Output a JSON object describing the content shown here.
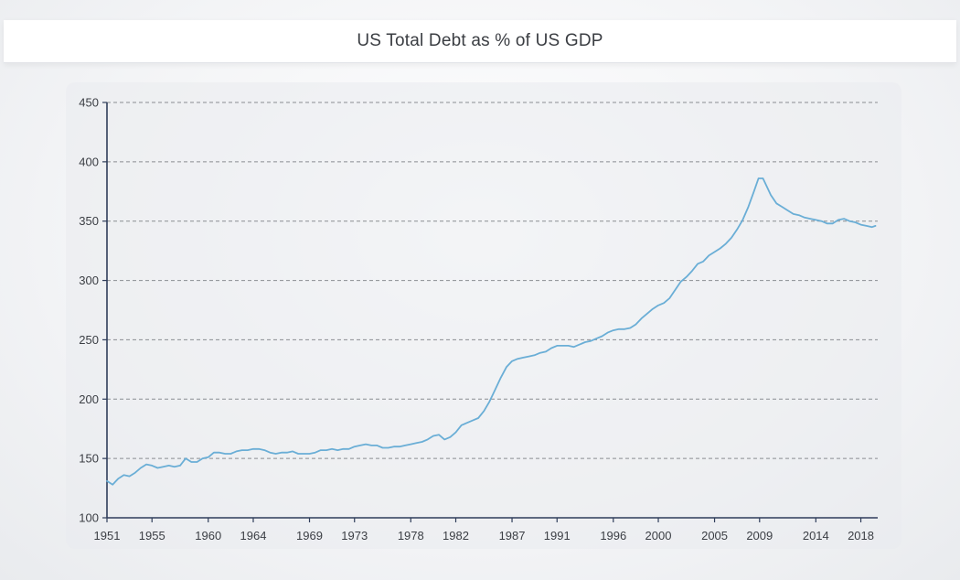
{
  "chart_data": {
    "type": "line",
    "title": "US Total Debt as % of US GDP",
    "xlabel": "",
    "ylabel": "",
    "xlim": [
      1951,
      2019.5
    ],
    "ylim": [
      100,
      450
    ],
    "y_ticks": [
      100,
      150,
      200,
      250,
      300,
      350,
      400,
      450
    ],
    "x_ticks": [
      1951,
      1955,
      1960,
      1964,
      1969,
      1973,
      1978,
      1982,
      1987,
      1991,
      1996,
      2000,
      2005,
      2009,
      2014,
      2018
    ],
    "grid": "horizontal dashed",
    "colors": {
      "line": "#6aaed6",
      "axis": "#2f3d5a",
      "grid": "#8a8d92"
    },
    "series": [
      {
        "values": [
          [
            1951.0,
            131
          ],
          [
            1951.5,
            128
          ],
          [
            1952.0,
            133
          ],
          [
            1952.5,
            136
          ],
          [
            1953.0,
            135
          ],
          [
            1953.5,
            138
          ],
          [
            1954.0,
            142
          ],
          [
            1954.5,
            145
          ],
          [
            1955.0,
            144
          ],
          [
            1955.5,
            142
          ],
          [
            1956.0,
            143
          ],
          [
            1956.5,
            144
          ],
          [
            1957.0,
            143
          ],
          [
            1957.5,
            144
          ],
          [
            1958.0,
            150
          ],
          [
            1958.5,
            147
          ],
          [
            1959.0,
            147
          ],
          [
            1959.5,
            150
          ],
          [
            1960.0,
            151
          ],
          [
            1960.5,
            155
          ],
          [
            1961.0,
            155
          ],
          [
            1961.5,
            154
          ],
          [
            1962.0,
            154
          ],
          [
            1962.5,
            156
          ],
          [
            1963.0,
            157
          ],
          [
            1963.5,
            157
          ],
          [
            1964.0,
            158
          ],
          [
            1964.5,
            158
          ],
          [
            1965.0,
            157
          ],
          [
            1965.5,
            155
          ],
          [
            1966.0,
            154
          ],
          [
            1966.5,
            155
          ],
          [
            1967.0,
            155
          ],
          [
            1967.5,
            156
          ],
          [
            1968.0,
            154
          ],
          [
            1968.5,
            154
          ],
          [
            1969.0,
            154
          ],
          [
            1969.5,
            155
          ],
          [
            1970.0,
            157
          ],
          [
            1970.5,
            157
          ],
          [
            1971.0,
            158
          ],
          [
            1971.5,
            157
          ],
          [
            1972.0,
            158
          ],
          [
            1972.5,
            158
          ],
          [
            1973.0,
            160
          ],
          [
            1973.5,
            161
          ],
          [
            1974.0,
            162
          ],
          [
            1974.5,
            161
          ],
          [
            1975.0,
            161
          ],
          [
            1975.5,
            159
          ],
          [
            1976.0,
            159
          ],
          [
            1976.5,
            160
          ],
          [
            1977.0,
            160
          ],
          [
            1977.5,
            161
          ],
          [
            1978.0,
            162
          ],
          [
            1978.5,
            163
          ],
          [
            1979.0,
            164
          ],
          [
            1979.5,
            166
          ],
          [
            1980.0,
            169
          ],
          [
            1980.5,
            170
          ],
          [
            1981.0,
            166
          ],
          [
            1981.5,
            168
          ],
          [
            1982.0,
            172
          ],
          [
            1982.5,
            178
          ],
          [
            1983.0,
            180
          ],
          [
            1983.5,
            182
          ],
          [
            1984.0,
            184
          ],
          [
            1984.5,
            190
          ],
          [
            1985.0,
            198
          ],
          [
            1985.5,
            208
          ],
          [
            1986.0,
            218
          ],
          [
            1986.5,
            227
          ],
          [
            1987.0,
            232
          ],
          [
            1987.5,
            234
          ],
          [
            1988.0,
            235
          ],
          [
            1988.5,
            236
          ],
          [
            1989.0,
            237
          ],
          [
            1989.5,
            239
          ],
          [
            1990.0,
            240
          ],
          [
            1990.5,
            243
          ],
          [
            1991.0,
            245
          ],
          [
            1991.5,
            245
          ],
          [
            1992.0,
            245
          ],
          [
            1992.5,
            244
          ],
          [
            1993.0,
            246
          ],
          [
            1993.5,
            248
          ],
          [
            1994.0,
            249
          ],
          [
            1994.5,
            251
          ],
          [
            1995.0,
            253
          ],
          [
            1995.5,
            256
          ],
          [
            1996.0,
            258
          ],
          [
            1996.5,
            259
          ],
          [
            1997.0,
            259
          ],
          [
            1997.5,
            260
          ],
          [
            1998.0,
            263
          ],
          [
            1998.5,
            268
          ],
          [
            1999.0,
            272
          ],
          [
            1999.5,
            276
          ],
          [
            2000.0,
            279
          ],
          [
            2000.5,
            281
          ],
          [
            2001.0,
            285
          ],
          [
            2001.5,
            292
          ],
          [
            2002.0,
            299
          ],
          [
            2002.5,
            303
          ],
          [
            2003.0,
            308
          ],
          [
            2003.5,
            314
          ],
          [
            2004.0,
            316
          ],
          [
            2004.5,
            321
          ],
          [
            2005.0,
            324
          ],
          [
            2005.5,
            327
          ],
          [
            2006.0,
            331
          ],
          [
            2006.5,
            336
          ],
          [
            2007.0,
            343
          ],
          [
            2007.5,
            351
          ],
          [
            2008.0,
            362
          ],
          [
            2008.5,
            375
          ],
          [
            2008.9,
            386
          ],
          [
            2009.3,
            386
          ],
          [
            2009.7,
            378
          ],
          [
            2010.0,
            372
          ],
          [
            2010.5,
            365
          ],
          [
            2011.0,
            362
          ],
          [
            2011.5,
            359
          ],
          [
            2012.0,
            356
          ],
          [
            2012.5,
            355
          ],
          [
            2013.0,
            353
          ],
          [
            2013.5,
            352
          ],
          [
            2014.0,
            351
          ],
          [
            2014.5,
            350
          ],
          [
            2015.0,
            348
          ],
          [
            2015.5,
            348
          ],
          [
            2016.0,
            351
          ],
          [
            2016.5,
            352
          ],
          [
            2017.0,
            350
          ],
          [
            2017.5,
            349
          ],
          [
            2018.0,
            347
          ],
          [
            2018.5,
            346
          ],
          [
            2019.0,
            345
          ],
          [
            2019.3,
            346
          ]
        ]
      }
    ]
  }
}
